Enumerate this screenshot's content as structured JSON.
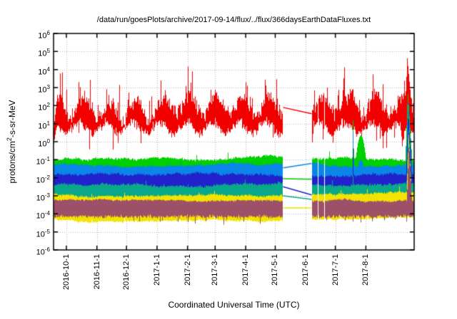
{
  "chart_data": {
    "type": "area",
    "title": "/data/run/goesPlots/archive/2017-09-14/flux/../flux/366daysEarthDataFluxes.txt",
    "xlabel": "Coordinated Universal Time (UTC)",
    "ylabel": "protons/cm^2-s-sr-MeV",
    "ylabel_parts": {
      "prefix": "protons/cm",
      "sup": "2",
      "suffix": "-s-sr-MeV"
    },
    "y_scale": "log10",
    "ylim_exponents": [
      -6,
      6
    ],
    "y_tick_exponents": [
      6,
      5,
      4,
      3,
      2,
      1,
      0,
      -1,
      -2,
      -3,
      -4,
      -5,
      -6
    ],
    "x_range_days": 366,
    "x_ticks": [
      {
        "label": "2016-10-1",
        "day": 13
      },
      {
        "label": "2016-11-1",
        "day": 44
      },
      {
        "label": "2016-12-1",
        "day": 74
      },
      {
        "label": "2017-1-1",
        "day": 105
      },
      {
        "label": "2017-2-1",
        "day": 136
      },
      {
        "label": "2017-3-1",
        "day": 164
      },
      {
        "label": "2017-4-1",
        "day": 195
      },
      {
        "label": "2017-5-1",
        "day": 225
      },
      {
        "label": "2017-6-1",
        "day": 256
      },
      {
        "label": "2017-7-1",
        "day": 286
      },
      {
        "label": "2017-8-1",
        "day": 317
      }
    ],
    "grid": "dotted",
    "background": "#ffffff",
    "axis_color": "#000000",
    "grid_color": "#b4b4b4",
    "events": {
      "gap": {
        "start_day": 233,
        "end_day": 262
      },
      "dropouts": [
        {
          "day": 268.4,
          "width_days": 0.7
        },
        {
          "day": 275.2,
          "width_days": 0.9
        }
      ],
      "june_spike": {
        "day": 304.2,
        "slope_per_day": 4.0
      },
      "green_hump": {
        "day": 312.0,
        "curvature": 0.05
      },
      "start_ramp_days": 4
    },
    "series": [
      {
        "name": "red-band",
        "color": "#f20000",
        "hi": 1.95,
        "hi_jitter": 0.5,
        "hi_walk": 0.22,
        "wave_amp": 0.5,
        "wave_period_days": 27,
        "wave_phase": 0.8,
        "burst_prob": 0.12,
        "burst_amp": 1.7,
        "spike_prob": 0.02,
        "spike_amp": 1.4,
        "hi_max": 4.75,
        "lo": 0.78,
        "lo_jitter": 0.33,
        "lo_wave_amp": 0.3,
        "dip_prob": 0.04,
        "dip_amp": 1.1,
        "gap_bridge": [
          1.9,
          1.55
        ],
        "big_event": {
          "peak": 4.7,
          "day": 359.0,
          "rise_per_day": 1.8,
          "decay_per_day": 0.6
        },
        "start_ramp": {
          "hi0": 0.6,
          "hi_rate": 0.5,
          "lo0": -0.25,
          "lo_rate": 0.35
        },
        "lo_dips": [
          {
            "day": 262.9,
            "depth": 1.1,
            "half_width": 0.8
          },
          {
            "day": 354.5,
            "depth": 1.3,
            "half_width": 2.5
          }
        ]
      },
      {
        "name": "green-band",
        "color": "#00cf00",
        "hi": -0.92,
        "hi_jitter": 0.07,
        "hi_walk": 0.07,
        "spike_prob": 0.02,
        "spike_amp": 0.45,
        "fill_depth": 1.4,
        "gap_bridge": [
          -2.05,
          -2.08
        ],
        "june_spike_peak": 1.85,
        "hump_peak": 0.35,
        "big_event": {
          "peak": 2.85,
          "day": 359.6,
          "rise_per_day": 1.6,
          "decay_per_day": 0.85
        }
      },
      {
        "name": "light-blue-band",
        "color": "#0a85e8",
        "hi": -1.28,
        "hi_jitter": 0.07,
        "hi_walk": 0.06,
        "spike_prob": 0.008,
        "spike_amp": 0.2,
        "fill_depth": 1.4,
        "gap_bridge": [
          -1.45,
          -1.2
        ],
        "june_spike_peak": 1.25,
        "hump_peak": -1.0,
        "big_event": {
          "peak": 2.3,
          "day": 359.9,
          "rise_per_day": 1.6,
          "decay_per_day": 0.95
        }
      },
      {
        "name": "dark-blue-band",
        "color": "#2222cc",
        "hi": -1.83,
        "hi_jitter": 0.08,
        "hi_walk": 0.06,
        "fill_depth": 1.4,
        "gap_bridge": [
          -2.5,
          -2.95
        ],
        "june_spike_peak": 0.3,
        "big_event": {
          "peak": 1.7,
          "day": 360.1,
          "rise_per_day": 1.6,
          "decay_per_day": 1.0
        }
      },
      {
        "name": "teal-band",
        "color": "#0aa88a",
        "hi": -2.37,
        "hi_jitter": 0.08,
        "hi_walk": 0.05,
        "spike_prob": 0.01,
        "spike_amp": 0.25,
        "fill_depth": 1.4,
        "gap_bridge": [
          -3.0,
          -3.2
        ],
        "june_spike_peak": -1.2,
        "big_event": {
          "peak": 0.9,
          "day": 360.3,
          "rise_per_day": 1.6,
          "decay_per_day": 1.05
        }
      },
      {
        "name": "yellow-band",
        "color": "#f2e300",
        "hi": -2.92,
        "hi_jitter": 0.07,
        "hi_walk": 0.05,
        "spike_prob": 0.015,
        "spike_amp": 0.3,
        "fill_depth": 1.4,
        "gap_bridge": [
          -3.67,
          -3.67
        ],
        "big_event": {
          "peak": 0.45,
          "day": 360.5,
          "rise_per_day": 1.6,
          "decay_per_day": 1.1
        }
      },
      {
        "name": "maroon-band",
        "color": "#9c5168",
        "hi": -3.24,
        "hi_jitter": 0.06,
        "hi_walk": 0.04,
        "lo": -4.15,
        "lo_jitter": 0.12,
        "dip_prob": 0.05,
        "dip_amp": 0.4,
        "big_event": {
          "peak": 0.05,
          "day": 360.8,
          "rise_per_day": 1.6,
          "decay_per_day": 1.15
        }
      }
    ]
  }
}
